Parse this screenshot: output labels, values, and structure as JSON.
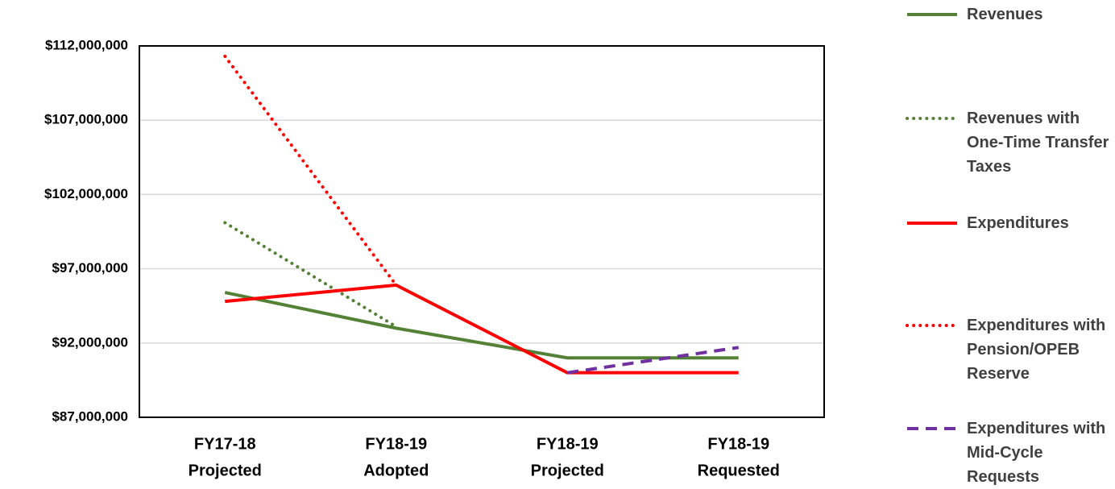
{
  "chart_data": {
    "type": "line",
    "categories": [
      [
        "FY17-18",
        "Projected"
      ],
      [
        "FY18-19",
        "Adopted"
      ],
      [
        "FY18-19",
        "Projected"
      ],
      [
        "FY18-19",
        "Requested"
      ]
    ],
    "ylim": [
      87000000,
      112000000
    ],
    "yticks": [
      {
        "value": 87000000,
        "label": "$87,000,000"
      },
      {
        "value": 92000000,
        "label": "$92,000,000"
      },
      {
        "value": 97000000,
        "label": "$97,000,000"
      },
      {
        "value": 102000000,
        "label": "$102,000,000"
      },
      {
        "value": 107000000,
        "label": "$107,000,000"
      },
      {
        "value": 112000000,
        "label": "$112,000,000"
      }
    ],
    "grid": true,
    "legend": "right",
    "series": [
      {
        "name": "Revenues",
        "color": "#538135",
        "style": "solid",
        "values": [
          95400000,
          93000000,
          91000000,
          91000000
        ]
      },
      {
        "name": "Revenues with One-Time Transfer Taxes",
        "color": "#538135",
        "style": "dotted",
        "values": [
          100100000,
          93100000,
          null,
          null
        ]
      },
      {
        "name": "Expenditures",
        "color": "#ff0000",
        "style": "solid",
        "values": [
          94800000,
          95900000,
          90000000,
          90000000
        ]
      },
      {
        "name": "Expenditures with Pension/OPEB Reserve",
        "color": "#ff0000",
        "style": "dotted",
        "values": [
          111300000,
          95900000,
          null,
          null
        ]
      },
      {
        "name": "Expenditures with Mid-Cycle Requests",
        "color": "#7030a0",
        "style": "dashed",
        "values": [
          null,
          null,
          90000000,
          91700000
        ]
      }
    ]
  }
}
